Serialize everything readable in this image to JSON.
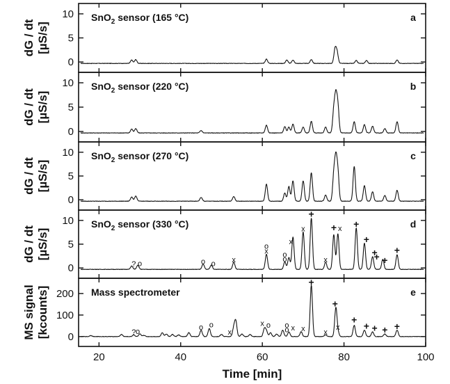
{
  "chart_data": {
    "type": "line",
    "xlabel": "Time [min]",
    "xlim": [
      15,
      100
    ],
    "xticks": [
      20,
      40,
      60,
      80,
      100
    ],
    "grid": false,
    "panels": [
      {
        "letter": "a",
        "title_main": "SnO",
        "title_sub": "2",
        "title_rest": " sensor (165 °C)",
        "ylabel_lines": [
          "dG / dt",
          "[µS/s]"
        ],
        "ylim": [
          -1,
          11
        ],
        "yticks": [
          0,
          5,
          10
        ],
        "baseline": -0.3,
        "peaks": [
          [
            28,
            0.4
          ],
          [
            29,
            0.5
          ],
          [
            61,
            0.6
          ],
          [
            66,
            0.4
          ],
          [
            67.5,
            0.4
          ],
          [
            72,
            0.5
          ],
          [
            77.8,
            2.6
          ],
          [
            78.3,
            2.0
          ],
          [
            83,
            0.3
          ],
          [
            85.5,
            0.3
          ],
          [
            93,
            0.4
          ]
        ],
        "markers": []
      },
      {
        "letter": "b",
        "title_main": "SnO",
        "title_sub": "2",
        "title_rest": " sensor (220 °C)",
        "ylabel_lines": [
          "dG / dt",
          "[µS/s]"
        ],
        "ylim": [
          -1,
          11
        ],
        "yticks": [
          0,
          5,
          10
        ],
        "baseline": -0.3,
        "peaks": [
          [
            28,
            0.5
          ],
          [
            29,
            0.6
          ],
          [
            45,
            0.2
          ],
          [
            61,
            1.3
          ],
          [
            65.5,
            1.0
          ],
          [
            66.5,
            0.9
          ],
          [
            67.5,
            1.5
          ],
          [
            70,
            0.9
          ],
          [
            72,
            2.1
          ],
          [
            75.5,
            0.9
          ],
          [
            77.5,
            4.2
          ],
          [
            78,
            6.6
          ],
          [
            78.5,
            5.0
          ],
          [
            82.5,
            2.0
          ],
          [
            85,
            1.4
          ],
          [
            87,
            1.1
          ],
          [
            90,
            0.6
          ],
          [
            93,
            2.0
          ]
        ],
        "markers": []
      },
      {
        "letter": "c",
        "title_main": "SnO",
        "title_sub": "2",
        "title_rest": " sensor (270 °C)",
        "ylabel_lines": [
          "dG / dt",
          "[µS/s]"
        ],
        "ylim": [
          -1,
          11
        ],
        "yticks": [
          0,
          5,
          10
        ],
        "baseline": -0.3,
        "peaks": [
          [
            28,
            0.6
          ],
          [
            29,
            0.8
          ],
          [
            45,
            0.5
          ],
          [
            53,
            0.7
          ],
          [
            61,
            3.3
          ],
          [
            65.5,
            1.4
          ],
          [
            66.5,
            2.8
          ],
          [
            67.5,
            4.0
          ],
          [
            70,
            4.0
          ],
          [
            72,
            5.7
          ],
          [
            75.5,
            1.0
          ],
          [
            77.5,
            5.0
          ],
          [
            78,
            7.8
          ],
          [
            78.5,
            5.6
          ],
          [
            82.5,
            7.0
          ],
          [
            85,
            3.0
          ],
          [
            87,
            1.7
          ],
          [
            90,
            0.9
          ],
          [
            93,
            2.0
          ]
        ],
        "markers": []
      },
      {
        "letter": "d",
        "title_main": "SnO",
        "title_sub": "2",
        "title_rest": " sensor (330 °C)",
        "ylabel_lines": [
          "dG / dt",
          "[µS/s]"
        ],
        "ylim": [
          -1,
          11
        ],
        "yticks": [
          0,
          5,
          10
        ],
        "baseline": -0.3,
        "peaks": [
          [
            28,
            0.4
          ],
          [
            29.5,
            0.6
          ],
          [
            45.5,
            0.8
          ],
          [
            47.5,
            0.6
          ],
          [
            53,
            1.2
          ],
          [
            61,
            2.9
          ],
          [
            65.5,
            1.3
          ],
          [
            66.5,
            2.2
          ],
          [
            67.5,
            6.5
          ],
          [
            70,
            7.6
          ],
          [
            72,
            10.5
          ],
          [
            75.5,
            1.2
          ],
          [
            77.5,
            7.0
          ],
          [
            78.5,
            7.2
          ],
          [
            83,
            8.4
          ],
          [
            85,
            5.2
          ],
          [
            87,
            2.4
          ],
          [
            89.5,
            1.8
          ],
          [
            93,
            2.8
          ]
        ],
        "markers": [
          {
            "x": 28.5,
            "y": 0.9,
            "label": "?"
          },
          {
            "x": 30,
            "y": 1.0,
            "label": "o"
          },
          {
            "x": 45.5,
            "y": 1.4,
            "label": "o"
          },
          {
            "x": 48,
            "y": 1.0,
            "label": "o"
          },
          {
            "x": 53,
            "y": 1.8,
            "label": "x"
          },
          {
            "x": 61,
            "y": 4.6,
            "label": "o"
          },
          {
            "x": 61,
            "y": 3.6,
            "label": "x"
          },
          {
            "x": 65.5,
            "y": 2.9,
            "label": "o"
          },
          {
            "x": 65.5,
            "y": 1.9,
            "label": "o"
          },
          {
            "x": 67,
            "y": 5.6,
            "label": "x"
          },
          {
            "x": 70,
            "y": 8.3,
            "label": "x"
          },
          {
            "x": 72,
            "y": 11.2,
            "label": "+"
          },
          {
            "x": 75.5,
            "y": 1.8,
            "label": "x"
          },
          {
            "x": 77.5,
            "y": 8.4,
            "label": "+"
          },
          {
            "x": 79,
            "y": 8.4,
            "label": "x"
          },
          {
            "x": 83,
            "y": 9.1,
            "label": "+"
          },
          {
            "x": 85.5,
            "y": 5.9,
            "label": "+"
          },
          {
            "x": 87.5,
            "y": 3.1,
            "label": "+"
          },
          {
            "x": 88,
            "y": 2.2,
            "label": "+"
          },
          {
            "x": 90,
            "y": 1.5,
            "label": "+"
          },
          {
            "x": 93,
            "y": 3.6,
            "label": "+"
          }
        ]
      },
      {
        "letter": "e",
        "title_main": "Mass spectrometer",
        "title_sub": "",
        "title_rest": "",
        "ylabel_lines": [
          "MS signal",
          "[kcounts]"
        ],
        "ylim": [
          -20,
          245
        ],
        "yticks": [
          0,
          100,
          200
        ],
        "baseline": 0,
        "peaks": [
          [
            18,
            5
          ],
          [
            25.5,
            10
          ],
          [
            28.5,
            8
          ],
          [
            30,
            12
          ],
          [
            31,
            6
          ],
          [
            35.5,
            18
          ],
          [
            36.5,
            12
          ],
          [
            38,
            10
          ],
          [
            39.5,
            8
          ],
          [
            42,
            18
          ],
          [
            45,
            30
          ],
          [
            47,
            38
          ],
          [
            50,
            10
          ],
          [
            53,
            40
          ],
          [
            53.5,
            70
          ],
          [
            55,
            12
          ],
          [
            57,
            10
          ],
          [
            60.5,
            35
          ],
          [
            61,
            25
          ],
          [
            62,
            18
          ],
          [
            63.5,
            12
          ],
          [
            65,
            30
          ],
          [
            66.5,
            22
          ],
          [
            69.5,
            22
          ],
          [
            72,
            240
          ],
          [
            75.5,
            8
          ],
          [
            78,
            132
          ],
          [
            78.5,
            20
          ],
          [
            82.5,
            52
          ],
          [
            85,
            30
          ],
          [
            87,
            22
          ],
          [
            90,
            12
          ],
          [
            93,
            30
          ]
        ],
        "markers": [
          {
            "x": 28.5,
            "y": 22,
            "label": "?"
          },
          {
            "x": 29.5,
            "y": 26,
            "label": "o"
          },
          {
            "x": 45,
            "y": 44,
            "label": "o"
          },
          {
            "x": 47.5,
            "y": 56,
            "label": "o"
          },
          {
            "x": 52,
            "y": 22,
            "label": "x"
          },
          {
            "x": 60,
            "y": 62,
            "label": "x"
          },
          {
            "x": 61.5,
            "y": 54,
            "label": "o"
          },
          {
            "x": 66,
            "y": 54,
            "label": "o"
          },
          {
            "x": 66,
            "y": 34,
            "label": "o"
          },
          {
            "x": 67.5,
            "y": 42,
            "label": "x"
          },
          {
            "x": 70,
            "y": 38,
            "label": "x"
          },
          {
            "x": 72,
            "y": 250,
            "label": "+"
          },
          {
            "x": 75.5,
            "y": 22,
            "label": "x"
          },
          {
            "x": 77.8,
            "y": 150,
            "label": "+"
          },
          {
            "x": 78.5,
            "y": 45,
            "label": "x"
          },
          {
            "x": 82.5,
            "y": 75,
            "label": "+"
          },
          {
            "x": 85.5,
            "y": 46,
            "label": "+"
          },
          {
            "x": 87.5,
            "y": 36,
            "label": "+"
          },
          {
            "x": 90,
            "y": 28,
            "label": "+"
          },
          {
            "x": 93,
            "y": 44,
            "label": "+"
          }
        ]
      }
    ]
  },
  "colors": {
    "line": "#111111",
    "frame": "#111111",
    "background": "#ffffff"
  }
}
